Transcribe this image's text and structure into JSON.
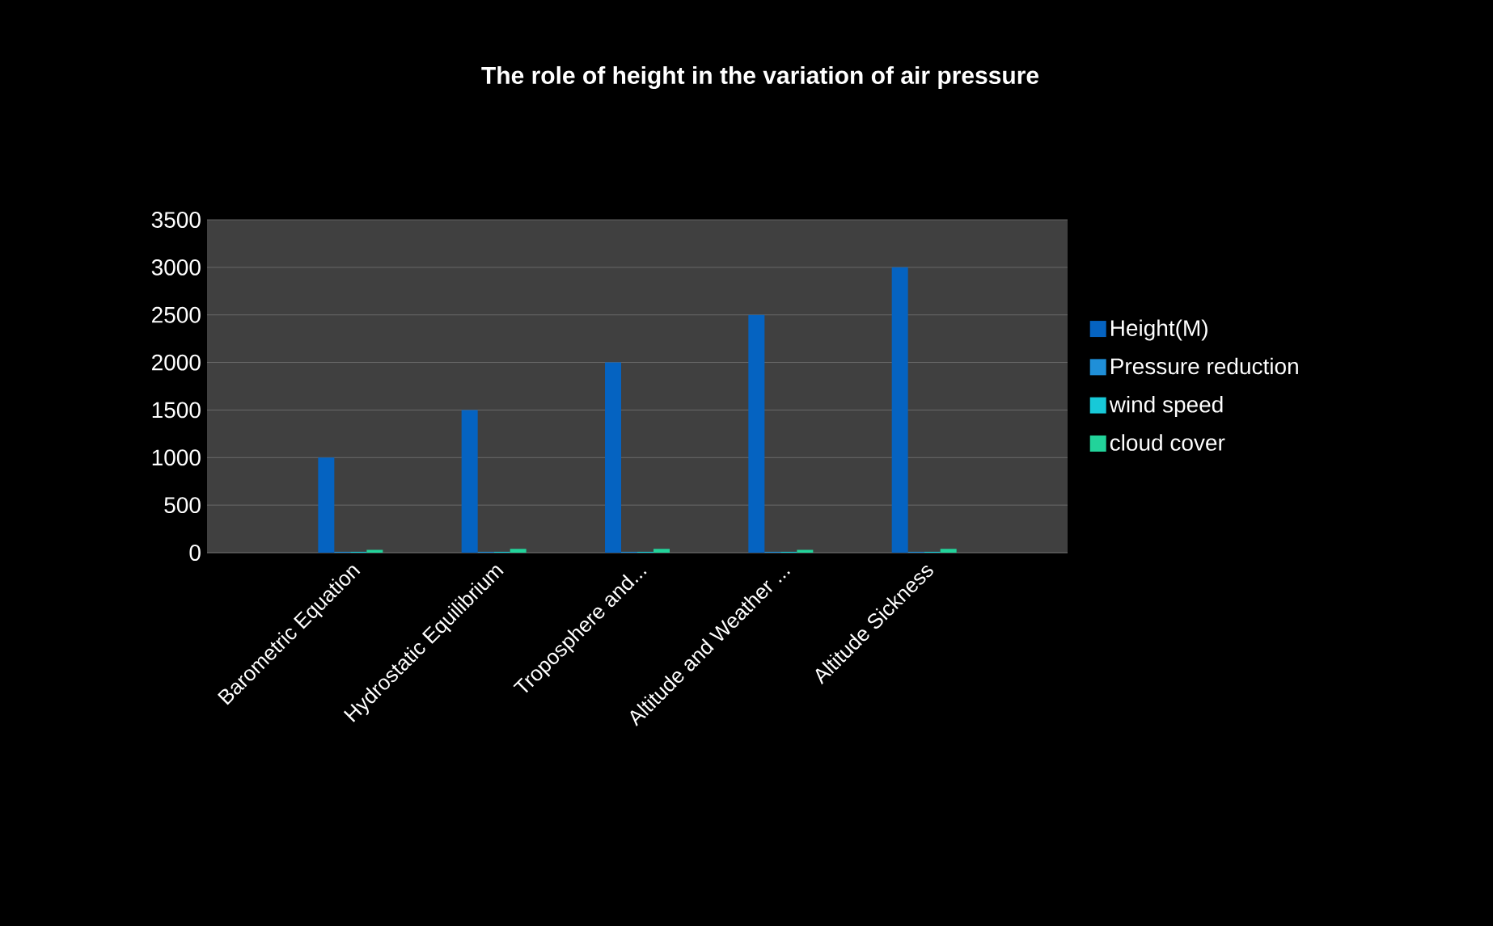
{
  "chart_data": {
    "type": "bar",
    "title": "The role of height in the  variation of air pressure",
    "categories": [
      "Barometric Equation",
      "Hydrostatic Equilibrium",
      "Troposphere and...",
      "Altitude and Weather ...",
      "Altitude Sickness"
    ],
    "series": [
      {
        "name": "Height(M)",
        "color": "#0563c1",
        "values": [
          1000,
          1500,
          2000,
          2500,
          3000
        ]
      },
      {
        "name": "Pressure reduction",
        "color": "#1f8fd8",
        "values": [
          10,
          10,
          10,
          10,
          10
        ]
      },
      {
        "name": "wind speed",
        "color": "#17c9d8",
        "values": [
          10,
          10,
          10,
          10,
          10
        ]
      },
      {
        "name": "cloud cover",
        "color": "#22d39a",
        "values": [
          30,
          40,
          40,
          30,
          40
        ]
      }
    ],
    "ylim": [
      0,
      3500
    ],
    "yticks": [
      0,
      500,
      1000,
      1500,
      2000,
      2500,
      3000,
      3500
    ],
    "grid": "y",
    "legend": "right"
  }
}
